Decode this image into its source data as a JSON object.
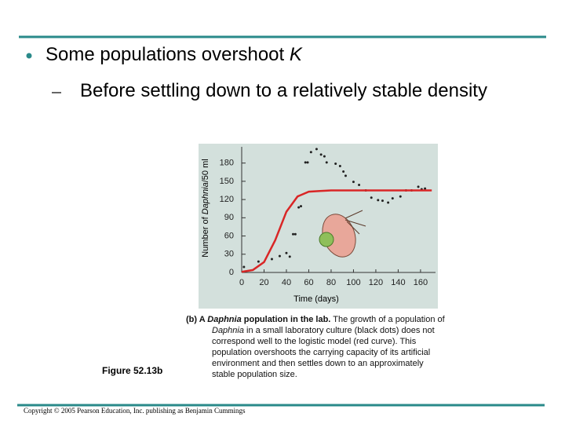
{
  "slide": {
    "bullet": [
      "Some populations overshoot ",
      "K"
    ],
    "sub_bullet": "Before settling down to a relatively stable density",
    "figure_label": "Figure 52.13b",
    "caption": [
      "(b) A ",
      "Daphnia",
      " population in the lab.",
      " The growth of a population of ",
      "Daphnia",
      " in a small laboratory culture (black dots) does not correspond well to the logistic model (red curve). This population overshoots the carrying capacity of its artificial environment and then settles down to an approximately stable population size."
    ],
    "copyright": "Copyright © 2005 Pearson Education, Inc. publishing as Benjamin Cummings"
  },
  "chart_data": {
    "type": "scatter",
    "y_label": [
      "Number of ",
      "Daphnia",
      "/50 ml"
    ],
    "x_label": "Time (days)",
    "xlim": [
      0,
      172
    ],
    "ylim": [
      0,
      208
    ],
    "xticks": [
      0,
      20,
      40,
      60,
      80,
      100,
      120,
      140,
      160
    ],
    "yticks": [
      0,
      30,
      60,
      90,
      120,
      150,
      180
    ],
    "series": [
      {
        "type": "scatter",
        "color": "#222222",
        "x": [
          2,
          15,
          27,
          34,
          40,
          43,
          46,
          48,
          51,
          53,
          57,
          59,
          62,
          67,
          71,
          74,
          76,
          84,
          88,
          91,
          93,
          100,
          105,
          111,
          116,
          122,
          126,
          131,
          135,
          142,
          147,
          152,
          158,
          161,
          164
        ],
        "values": [
          9,
          18,
          22,
          27,
          32,
          26,
          63,
          63,
          107,
          109,
          181,
          181,
          198,
          203,
          194,
          191,
          181,
          179,
          175,
          166,
          159,
          149,
          144,
          135,
          123,
          119,
          118,
          115,
          122,
          125,
          135,
          135,
          141,
          137,
          138
        ]
      },
      {
        "type": "line",
        "color": "#d92626",
        "x": [
          0,
          10,
          20,
          30,
          40,
          50,
          60,
          70,
          80,
          90,
          100,
          110,
          120,
          130,
          140,
          150,
          160,
          170
        ],
        "values": [
          1,
          4,
          17,
          53,
          100,
          125,
          133,
          134,
          135,
          135,
          135,
          135,
          135,
          135,
          135,
          135,
          135,
          135
        ]
      }
    ]
  }
}
